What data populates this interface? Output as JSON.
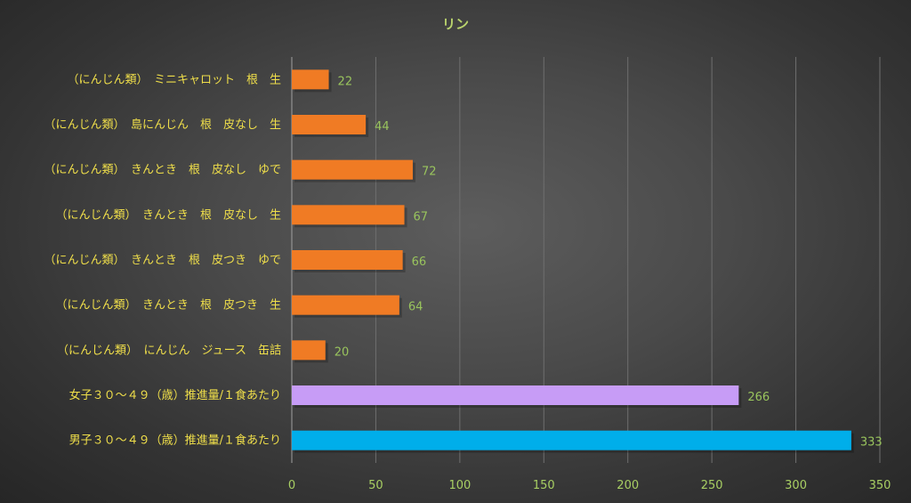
{
  "chart_data": {
    "type": "bar",
    "orientation": "horizontal",
    "title": "リン",
    "categories": [
      "（にんじん類）　ミニキャロット　根　生",
      "（にんじん類）　島にんじん　根　皮なし　生",
      "（にんじん類）　きんとき　根　皮なし　ゆで",
      "（にんじん類）　きんとき　根　皮なし　生",
      "（にんじん類）　きんとき　根　皮つき　ゆで",
      "（にんじん類）　きんとき　根　皮つき　生",
      "（にんじん類）　にんじん　ジュース　缶詰",
      "女子３０～４９（歳）推進量/１食あたり",
      "男子３０～４９（歳）推進量/１食あたり"
    ],
    "values": [
      22,
      44,
      72,
      67,
      66,
      64,
      20,
      266,
      333
    ],
    "bar_colors": [
      "#f07b24",
      "#f07b24",
      "#f07b24",
      "#f07b24",
      "#f07b24",
      "#f07b24",
      "#f07b24",
      "#c79cf6",
      "#00aeea"
    ],
    "xlim": [
      0,
      350
    ],
    "x_ticks": [
      0,
      50,
      100,
      150,
      200,
      250,
      300,
      350
    ],
    "grid": "vertical",
    "legend": "none"
  },
  "colors": {
    "title": "#b9d36d",
    "category_text": "#f0df4a",
    "data_label": "#99c45d",
    "tick_label": "#a8cf63",
    "gridline": "#6f6f6f"
  }
}
